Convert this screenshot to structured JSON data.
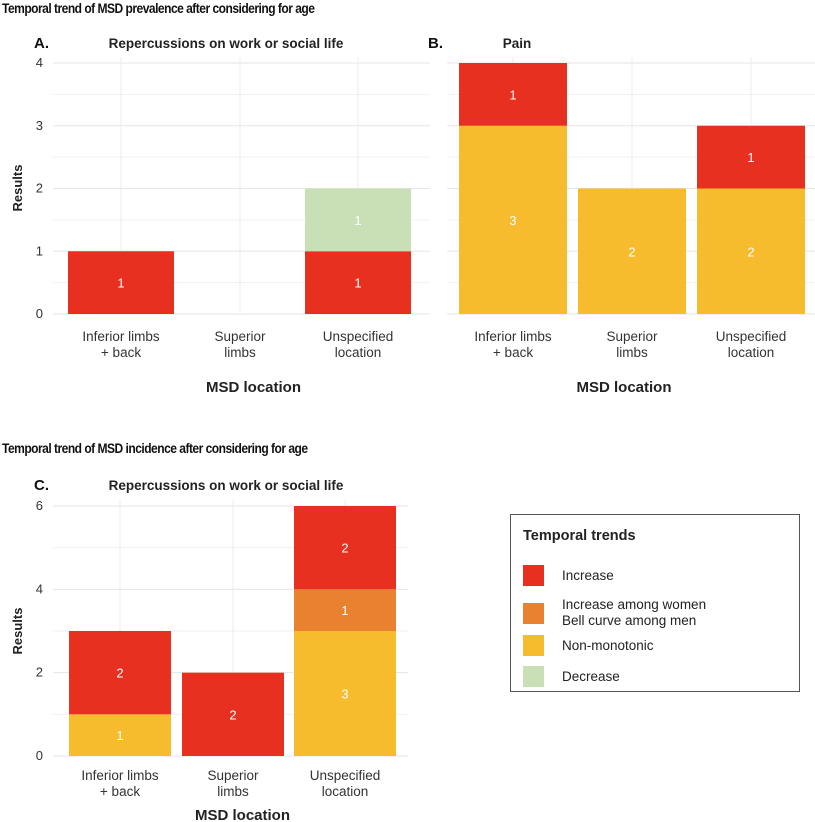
{
  "section_titles": {
    "top": "Temporal trend of MSD prevalence after considering for age",
    "bottom": "Temporal trend of MSD incidence after considering  for age"
  },
  "colors": {
    "Increase": "#e7301f",
    "Increase among women Bell curve among men": "#e8822f",
    "Non-monotonic": "#f7bb2e",
    "Decrease": "#c9dfb5"
  },
  "legend": {
    "title": "Temporal trends",
    "items": [
      {
        "key": "Increase",
        "lines": [
          "Increase"
        ]
      },
      {
        "key": "Increase among women Bell curve among men",
        "lines": [
          "Increase among women",
          "Bell curve among men"
        ]
      },
      {
        "key": "Non-monotonic",
        "lines": [
          "Non-monotonic"
        ]
      },
      {
        "key": "Decrease",
        "lines": [
          "Decrease"
        ]
      }
    ]
  },
  "chart_data": [
    {
      "panel": "A.",
      "type": "bar",
      "stacked": true,
      "title": "Repercussions on work or social life",
      "xlabel": "MSD location",
      "ylabel": "Results",
      "ylim": [
        0,
        4
      ],
      "yticks": [
        0,
        1,
        2,
        3,
        4
      ],
      "categories": [
        [
          "Inferior limbs",
          "+ back"
        ],
        [
          "Superior",
          "limbs"
        ],
        [
          "Unspecified",
          "location"
        ]
      ],
      "series": [
        {
          "name": "Increase",
          "values": [
            1,
            0,
            1
          ]
        },
        {
          "name": "Decrease",
          "values": [
            0,
            0,
            1
          ]
        }
      ]
    },
    {
      "panel": "B.",
      "type": "bar",
      "stacked": true,
      "title": "Pain",
      "xlabel": "MSD location",
      "ylabel": "",
      "ylim": [
        0,
        4
      ],
      "yticks": [],
      "categories": [
        [
          "Inferior limbs",
          "+ back"
        ],
        [
          "Superior",
          "limbs"
        ],
        [
          "Unspecified",
          "location"
        ]
      ],
      "series": [
        {
          "name": "Non-monotonic",
          "values": [
            3,
            2,
            2
          ]
        },
        {
          "name": "Increase",
          "values": [
            1,
            0,
            1
          ]
        }
      ]
    },
    {
      "panel": "C.",
      "type": "bar",
      "stacked": true,
      "title": "Repercussions on work or social life",
      "xlabel": "MSD location",
      "ylabel": "Results",
      "ylim": [
        0,
        6
      ],
      "yticks": [
        0,
        2,
        4,
        6
      ],
      "categories": [
        [
          "Inferior limbs",
          "+ back"
        ],
        [
          "Superior",
          "limbs"
        ],
        [
          "Unspecified",
          "location"
        ]
      ],
      "series": [
        {
          "name": "Non-monotonic",
          "values": [
            1,
            0,
            3
          ]
        },
        {
          "name": "Increase among women Bell curve among men",
          "values": [
            0,
            0,
            1
          ]
        },
        {
          "name": "Increase",
          "values": [
            2,
            2,
            2
          ]
        }
      ]
    }
  ]
}
